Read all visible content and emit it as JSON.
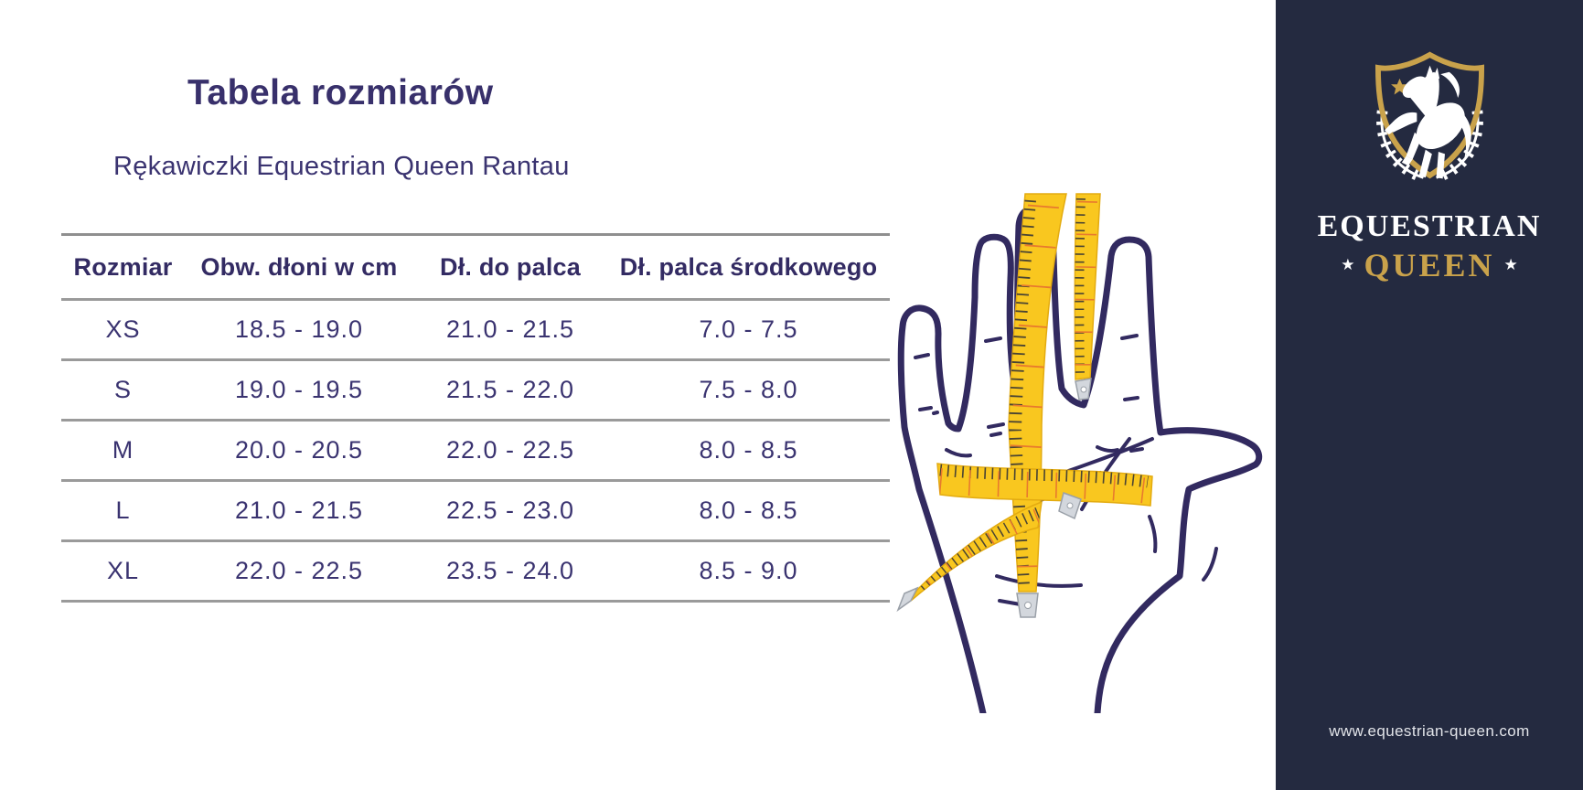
{
  "header": {
    "title": "Tabela rozmiarów",
    "subtitle": "Rękawiczki Equestrian Queen Rantau"
  },
  "size_table": {
    "columns": [
      "Rozmiar",
      "Obw. dłoni w cm",
      "Dł. do palca",
      "Dł. palca środkowego"
    ],
    "rows": [
      [
        "XS",
        "18.5 - 19.0",
        "21.0 - 21.5",
        "7.0 - 7.5"
      ],
      [
        "S",
        "19.0 - 19.5",
        "21.5 - 22.0",
        "7.5 - 8.0"
      ],
      [
        "M",
        "20.0 - 20.5",
        "22.0 - 22.5",
        "8.0 - 8.5"
      ],
      [
        "L",
        "21.0 - 21.5",
        "22.5 - 23.0",
        "8.0 - 8.5"
      ],
      [
        "XL",
        "22.0 - 22.5",
        "23.5 - 24.0",
        "8.5 - 9.0"
      ]
    ]
  },
  "illustration": {
    "description": "hand outline with yellow measuring tapes",
    "outline_color": "#322a60",
    "tape_color": "#f9c71f"
  },
  "brand_panel": {
    "background": "#242a40",
    "gold": "#c9a24b",
    "wordmark_line1": "EQUESTRIAN",
    "wordmark_line2": "QUEEN",
    "star": "★",
    "website": "www.equestrian-queen.com"
  },
  "colors": {
    "heading_text": "#38306b",
    "body_text": "#3a3370",
    "table_line": "#9a9a9a"
  }
}
